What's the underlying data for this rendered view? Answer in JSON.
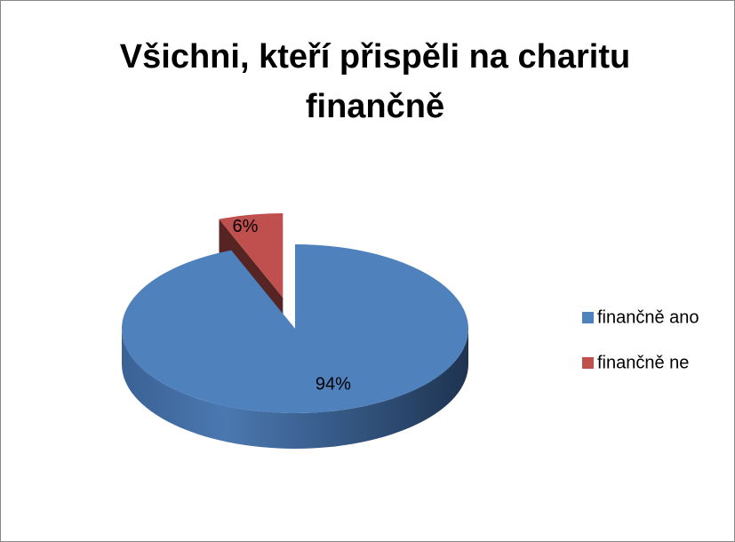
{
  "chart_data": {
    "type": "pie",
    "title": "Všichni, kteří přispěli na charitu finančně",
    "categories": [
      "finančně ano",
      "finančně ne"
    ],
    "values": [
      94,
      6
    ],
    "value_labels": [
      "94%",
      "6%"
    ],
    "colors": [
      "#4f81bd",
      "#c0504d"
    ],
    "legend": "right"
  }
}
